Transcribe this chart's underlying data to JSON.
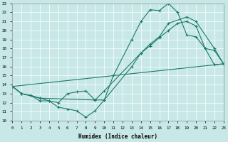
{
  "xlabel": "Humidex (Indice chaleur)",
  "xlim": [
    0,
    23
  ],
  "ylim": [
    10,
    23
  ],
  "yticks": [
    10,
    11,
    12,
    13,
    14,
    15,
    16,
    17,
    18,
    19,
    20,
    21,
    22,
    23
  ],
  "xticks": [
    0,
    1,
    2,
    3,
    4,
    5,
    6,
    7,
    8,
    9,
    10,
    11,
    12,
    13,
    14,
    15,
    16,
    17,
    18,
    19,
    20,
    21,
    22,
    23
  ],
  "bg_color": "#c8e8e8",
  "grid_color": "#b0d8d8",
  "line_color": "#1a7a6a",
  "lines": [
    {
      "x": [
        0,
        1,
        2,
        3,
        9,
        10,
        11,
        13,
        14,
        15,
        16,
        17,
        18,
        19,
        20,
        21,
        22,
        23
      ],
      "y": [
        13.8,
        13.0,
        12.8,
        12.5,
        12.3,
        12.3,
        15.0,
        19.0,
        21.0,
        22.3,
        22.2,
        23.0,
        22.0,
        19.5,
        19.3,
        18.0,
        17.8,
        16.3
      ]
    },
    {
      "x": [
        0,
        23
      ],
      "y": [
        13.8,
        16.3
      ]
    },
    {
      "x": [
        0,
        1,
        3,
        4,
        5,
        6,
        7,
        8,
        9,
        10,
        14,
        15,
        16,
        17,
        19,
        20,
        22,
        23
      ],
      "y": [
        13.8,
        13.0,
        12.5,
        12.2,
        12.0,
        13.0,
        13.2,
        13.3,
        12.3,
        13.3,
        17.5,
        18.5,
        19.3,
        20.8,
        21.5,
        21.0,
        18.0,
        16.3
      ]
    },
    {
      "x": [
        0,
        1,
        2,
        3,
        4,
        5,
        6,
        7,
        8,
        9,
        10,
        13,
        14,
        15,
        16,
        17,
        18,
        19,
        20,
        21,
        22,
        23
      ],
      "y": [
        13.8,
        13.0,
        12.8,
        12.2,
        12.2,
        11.5,
        11.3,
        11.1,
        10.4,
        11.1,
        12.3,
        16.0,
        17.5,
        18.3,
        19.2,
        20.0,
        20.8,
        21.0,
        20.5,
        18.0,
        16.2,
        16.3
      ]
    }
  ]
}
